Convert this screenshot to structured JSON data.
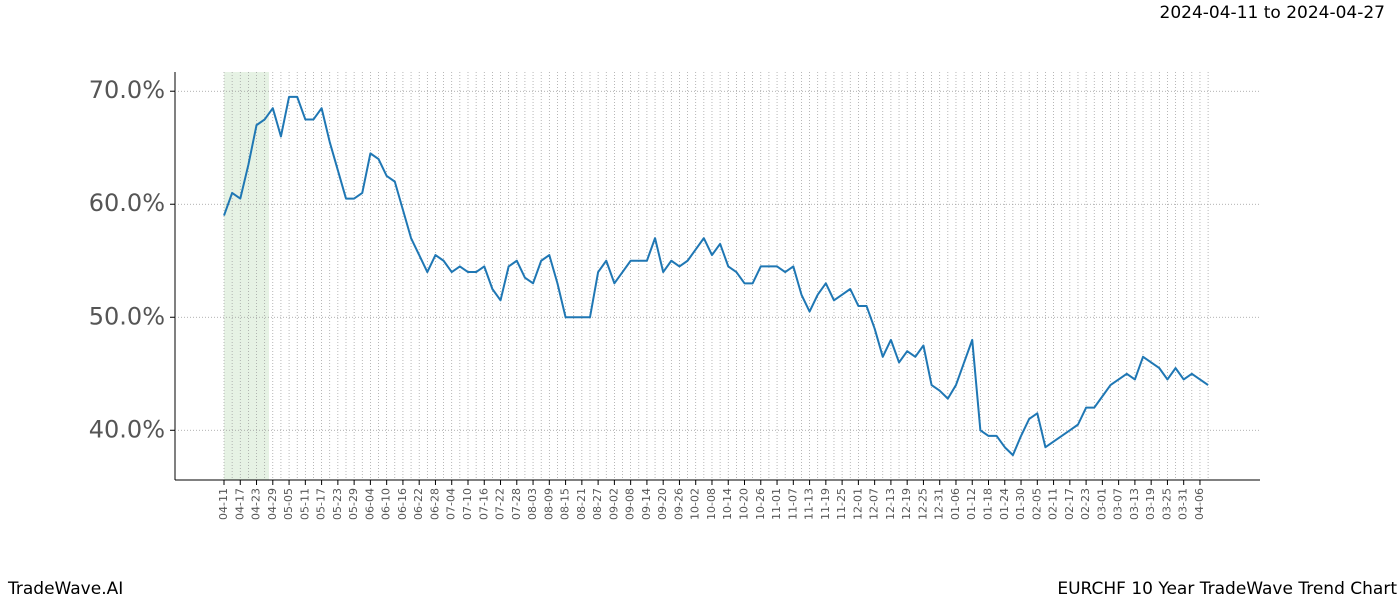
{
  "chart_data": {
    "type": "line",
    "date_range": "2024-04-11 to 2024-04-27",
    "brand": "TradeWave.AI",
    "title": "EURCHF 10 Year TradeWave Trend Chart",
    "categories": [
      "04-11",
      null,
      "04-17",
      null,
      "04-23",
      null,
      "04-29",
      null,
      "05-05",
      null,
      "05-11",
      null,
      "05-17",
      null,
      "05-23",
      null,
      "05-29",
      null,
      "06-04",
      null,
      "06-10",
      null,
      "06-16",
      null,
      "06-22",
      null,
      "06-28",
      null,
      "07-04",
      null,
      "07-10",
      null,
      "07-16",
      null,
      "07-22",
      null,
      "07-28",
      null,
      "08-03",
      null,
      "08-09",
      null,
      "08-15",
      null,
      "08-21",
      null,
      "08-27",
      null,
      "09-02",
      null,
      "09-08",
      null,
      "09-14",
      null,
      "09-20",
      null,
      "09-26",
      null,
      "10-02",
      null,
      "10-08",
      null,
      "10-14",
      null,
      "10-20",
      null,
      "10-26",
      null,
      "11-01",
      null,
      "11-07",
      null,
      "11-13",
      null,
      "11-19",
      null,
      "11-25",
      null,
      "12-01",
      null,
      "12-07",
      null,
      "12-13",
      null,
      "12-19",
      null,
      "12-25",
      null,
      "12-31",
      null,
      "01-06",
      null,
      "01-12",
      null,
      "01-18",
      null,
      "01-24",
      null,
      "01-30",
      null,
      "02-05",
      null,
      "02-11",
      null,
      "02-17",
      null,
      "02-23",
      null,
      "03-01",
      null,
      "03-07",
      null,
      "03-13",
      null,
      "03-19",
      null,
      "03-25",
      null,
      "03-31",
      null,
      "04-06",
      null
    ],
    "series": [
      {
        "color": "#1f77b4",
        "values": [
          59,
          61,
          60.5,
          63.5,
          67,
          67.5,
          68.5,
          66,
          69.5,
          69.5,
          67.5,
          67.5,
          68.5,
          65.5,
          63,
          60.5,
          60.5,
          61,
          64.5,
          64,
          62.5,
          62,
          59.5,
          57,
          55.5,
          54,
          55.5,
          55,
          54,
          54.5,
          54,
          54,
          54.5,
          52.5,
          51.5,
          54.5,
          55,
          53.5,
          53,
          55,
          55.5,
          53,
          50,
          50,
          50,
          50,
          54,
          55,
          53,
          54,
          55,
          55,
          55,
          57,
          54,
          55,
          54.5,
          55,
          56,
          57,
          55.5,
          56.5,
          54.5,
          54,
          53,
          53,
          54.5,
          54.5,
          54.5,
          54,
          54.5,
          52,
          50.5,
          52,
          53,
          51.5,
          52,
          52.5,
          51,
          51,
          49,
          46.5,
          48,
          46,
          47,
          46.5,
          47.5,
          44,
          43.5,
          42.8,
          44,
          46,
          48,
          40,
          39.5,
          39.5,
          38.5,
          37.8,
          39.5,
          41,
          41.5,
          38.5,
          39,
          39.5,
          40,
          40.5,
          42,
          42,
          43,
          44,
          44.5,
          45,
          44.5,
          46.5,
          46,
          45.5,
          44.5,
          45.5,
          44.5,
          45,
          44.5,
          44
        ]
      }
    ],
    "ylim": [
      35.6,
      71.7
    ],
    "yticks": [
      {
        "value": 40,
        "label": "40.0%"
      },
      {
        "value": 50,
        "label": "50.0%"
      },
      {
        "value": 60,
        "label": "60.0%"
      },
      {
        "value": 70,
        "label": "70.0%"
      }
    ],
    "grid": true
  }
}
